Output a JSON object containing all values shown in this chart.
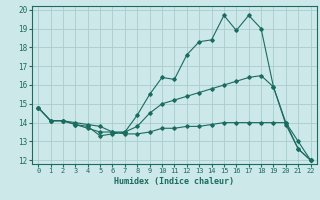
{
  "xlabel": "Humidex (Indice chaleur)",
  "bg_color": "#cce8e8",
  "grid_color": "#aacccc",
  "line_color": "#1a6b60",
  "xlim": [
    -0.5,
    22.5
  ],
  "ylim": [
    11.8,
    20.2
  ],
  "xticks": [
    0,
    1,
    2,
    3,
    4,
    5,
    6,
    7,
    8,
    9,
    10,
    11,
    12,
    13,
    14,
    15,
    16,
    17,
    18,
    19,
    20,
    21,
    22
  ],
  "yticks": [
    12,
    13,
    14,
    15,
    16,
    17,
    18,
    19,
    20
  ],
  "line1_x": [
    0,
    1,
    2,
    3,
    4,
    5,
    6,
    7,
    8,
    9,
    10,
    11,
    12,
    13,
    14,
    15,
    16,
    17,
    18,
    19,
    20,
    21,
    22
  ],
  "line1_y": [
    14.8,
    14.1,
    14.1,
    13.9,
    13.8,
    13.3,
    13.4,
    13.5,
    14.4,
    15.5,
    16.4,
    16.3,
    17.6,
    18.3,
    18.4,
    19.7,
    18.9,
    19.7,
    19.0,
    15.9,
    13.9,
    12.6,
    12.0
  ],
  "line2_x": [
    0,
    1,
    2,
    3,
    4,
    5,
    6,
    7,
    8,
    9,
    10,
    11,
    12,
    13,
    14,
    15,
    16,
    17,
    18,
    19,
    20,
    21,
    22
  ],
  "line2_y": [
    14.8,
    14.1,
    14.1,
    13.9,
    13.7,
    13.5,
    13.5,
    13.5,
    13.8,
    14.5,
    15.0,
    15.2,
    15.4,
    15.6,
    15.8,
    16.0,
    16.2,
    16.4,
    16.5,
    15.9,
    14.0,
    13.0,
    12.0
  ],
  "line3_x": [
    0,
    1,
    2,
    3,
    4,
    5,
    6,
    7,
    8,
    9,
    10,
    11,
    12,
    13,
    14,
    15,
    16,
    17,
    18,
    19,
    20,
    21,
    22
  ],
  "line3_y": [
    14.8,
    14.1,
    14.1,
    14.0,
    13.9,
    13.8,
    13.5,
    13.4,
    13.4,
    13.5,
    13.7,
    13.7,
    13.8,
    13.8,
    13.9,
    14.0,
    14.0,
    14.0,
    14.0,
    14.0,
    14.0,
    12.6,
    12.0
  ]
}
